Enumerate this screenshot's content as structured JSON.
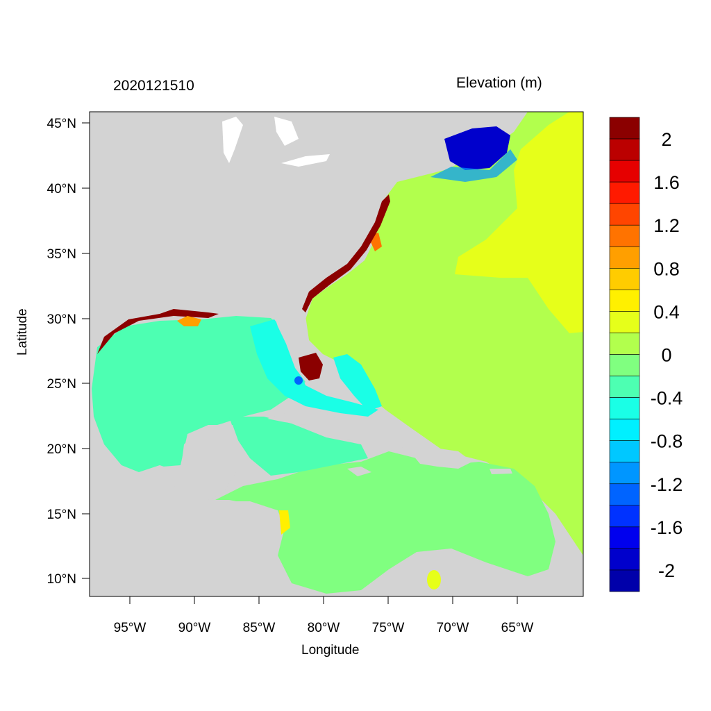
{
  "header": {
    "timestamp": "2020121510",
    "variable_title": "Elevation (m)"
  },
  "axes": {
    "xlabel": "Longitude",
    "ylabel": "Latitude",
    "x_ticks": [
      "95°W",
      "90°W",
      "85°W",
      "80°W",
      "75°W",
      "70°W",
      "65°W"
    ],
    "y_ticks": [
      "45°N",
      "40°N",
      "35°N",
      "30°N",
      "25°N",
      "20°N",
      "15°N",
      "10°N"
    ]
  },
  "colorbar": {
    "labels": [
      "2",
      "1.6",
      "1.2",
      "0.8",
      "0.4",
      "0",
      "-0.4",
      "-0.8",
      "-1.2",
      "-1.6",
      "-2"
    ],
    "colors": [
      "#8b0000",
      "#bb0000",
      "#e60000",
      "#ff1a00",
      "#ff4500",
      "#ff7300",
      "#ff9f00",
      "#ffcc00",
      "#fff000",
      "#e6ff1a",
      "#b2ff4d",
      "#80ff80",
      "#4dffb2",
      "#1affe6",
      "#00f0ff",
      "#00c8ff",
      "#0096ff",
      "#0064ff",
      "#0032ff",
      "#0000ee",
      "#0000cc",
      "#0000aa"
    ]
  },
  "map": {
    "land_color": "#d3d3d3",
    "ocean_atlantic_color": "#b2ff4d",
    "ocean_caribbean_color": "#80ff80",
    "gulf_color": "#4dffb2",
    "surge_high_color": "#8b0000",
    "surge_low_color": "#0000cc"
  }
}
